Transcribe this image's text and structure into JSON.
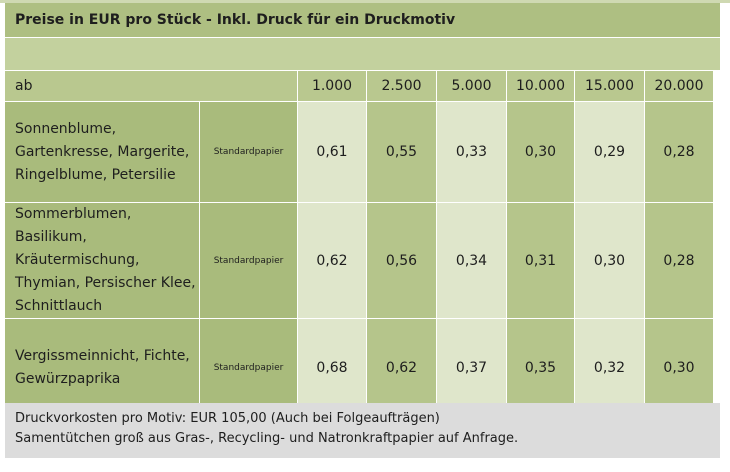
{
  "title": "Preise in EUR pro Stück - Inkl. Druck für ein Druckmotiv",
  "header": {
    "label": "ab",
    "quantities": [
      "1.000",
      "2.500",
      "5.000",
      "10.000",
      "15.000",
      "20.000"
    ]
  },
  "rows": [
    {
      "product": "Sonnenblume, Gartenkresse, Margerite, Ringelblume, Petersilie",
      "paper": "Standardpapier",
      "prices": [
        "0,61",
        "0,55",
        "0,33",
        "0,30",
        "0,29",
        "0,28"
      ]
    },
    {
      "product": "Sommerblumen, Basilikum, Kräutermischung, Thymian, Persischer Klee, Schnittlauch",
      "paper": "Standardpapier",
      "prices": [
        "0,62",
        "0,56",
        "0,34",
        "0,31",
        "0,30",
        "0,28"
      ]
    },
    {
      "product": "Vergissmeinnicht, Fichte, Gewürzpaprika",
      "paper": "Standardpapier",
      "prices": [
        "0,68",
        "0,62",
        "0,37",
        "0,35",
        "0,32",
        "0,30"
      ]
    }
  ],
  "footer": {
    "line1": "Druckvorkosten pro Motiv: EUR 105,00 (Auch bei Folgeaufträgen)",
    "line2": "Samentütchen groß aus Gras-, Recycling- und Natronkraftpapier auf Anfrage."
  },
  "colors": {
    "title_bg": "#aebf82",
    "header_bg": "#b9c88f",
    "light_col": "#dfe6cb",
    "dark_col": "#b5c58b",
    "footer_bg": "#dcdcdc"
  }
}
